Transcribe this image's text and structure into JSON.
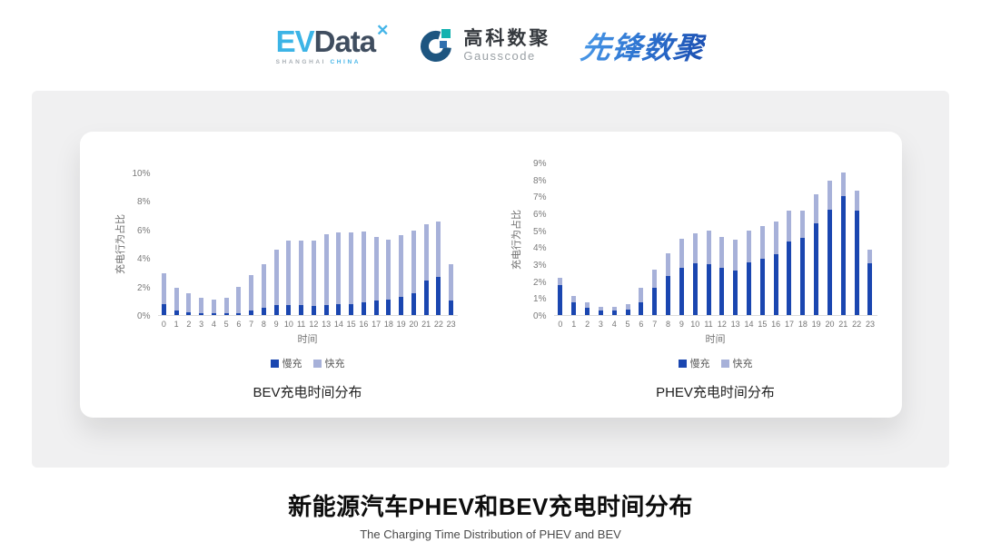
{
  "header": {
    "logos": {
      "evdata": {
        "ev": "EV",
        "data": "Data",
        "star": "✕",
        "sub_left": "SHANGHAI",
        "sub_right": "CHINA"
      },
      "gausscode": {
        "name_cn": "高科数聚",
        "name_en": "Gausscode"
      },
      "pioneer": {
        "text": "先锋数聚"
      }
    }
  },
  "footer": {
    "title": "新能源汽车PHEV和BEV充电时间分布",
    "subtitle": "The Charging Time Distribution of PHEV and BEV"
  },
  "chart_data": [
    {
      "type": "bar",
      "stacked": true,
      "title": "BEV充电时间分布",
      "xlabel": "时间",
      "ylabel": "充电行为占比",
      "ylim": [
        0,
        10
      ],
      "ytick_step": 2,
      "grid": false,
      "legend_position": "bottom",
      "categories": [
        "0",
        "1",
        "2",
        "3",
        "4",
        "5",
        "6",
        "7",
        "8",
        "9",
        "10",
        "11",
        "12",
        "13",
        "14",
        "15",
        "16",
        "17",
        "18",
        "19",
        "20",
        "21",
        "22",
        "23"
      ],
      "series": [
        {
          "name": "慢充",
          "color": "#1a46b0",
          "values": [
            0.75,
            0.35,
            0.2,
            0.1,
            0.1,
            0.1,
            0.15,
            0.35,
            0.5,
            0.7,
            0.7,
            0.7,
            0.65,
            0.7,
            0.75,
            0.75,
            0.9,
            1.0,
            1.1,
            1.25,
            1.5,
            2.4,
            2.7,
            1.0
          ]
        },
        {
          "name": "快充",
          "color": "#a7b1d9",
          "values": [
            2.15,
            1.55,
            1.3,
            1.1,
            1.0,
            1.1,
            1.85,
            2.45,
            3.1,
            3.9,
            4.5,
            4.55,
            4.6,
            4.95,
            5.05,
            5.05,
            4.95,
            4.5,
            4.2,
            4.35,
            4.4,
            3.95,
            3.85,
            2.55
          ]
        }
      ]
    },
    {
      "type": "bar",
      "stacked": true,
      "title": "PHEV充电时间分布",
      "xlabel": "时间",
      "ylabel": "充电行为占比",
      "ylim": [
        0,
        9
      ],
      "ytick_step": 1,
      "grid": false,
      "legend_position": "bottom",
      "categories": [
        "0",
        "1",
        "2",
        "3",
        "4",
        "5",
        "6",
        "7",
        "8",
        "9",
        "10",
        "11",
        "12",
        "13",
        "14",
        "15",
        "16",
        "17",
        "18",
        "19",
        "20",
        "21",
        "22",
        "23"
      ],
      "series": [
        {
          "name": "慢充",
          "color": "#1a46b0",
          "values": [
            1.75,
            0.75,
            0.45,
            0.25,
            0.25,
            0.3,
            0.75,
            1.6,
            2.3,
            2.8,
            3.05,
            3.0,
            2.8,
            2.65,
            3.1,
            3.3,
            3.6,
            4.35,
            4.55,
            5.4,
            6.2,
            7.0,
            6.15,
            3.05
          ]
        },
        {
          "name": "快充",
          "color": "#a7b1d9",
          "values": [
            0.45,
            0.4,
            0.3,
            0.25,
            0.25,
            0.35,
            0.85,
            1.1,
            1.35,
            1.7,
            1.75,
            2.0,
            1.8,
            1.8,
            1.9,
            1.95,
            1.9,
            1.8,
            1.6,
            1.7,
            1.75,
            1.4,
            1.2,
            0.8
          ]
        }
      ]
    }
  ]
}
